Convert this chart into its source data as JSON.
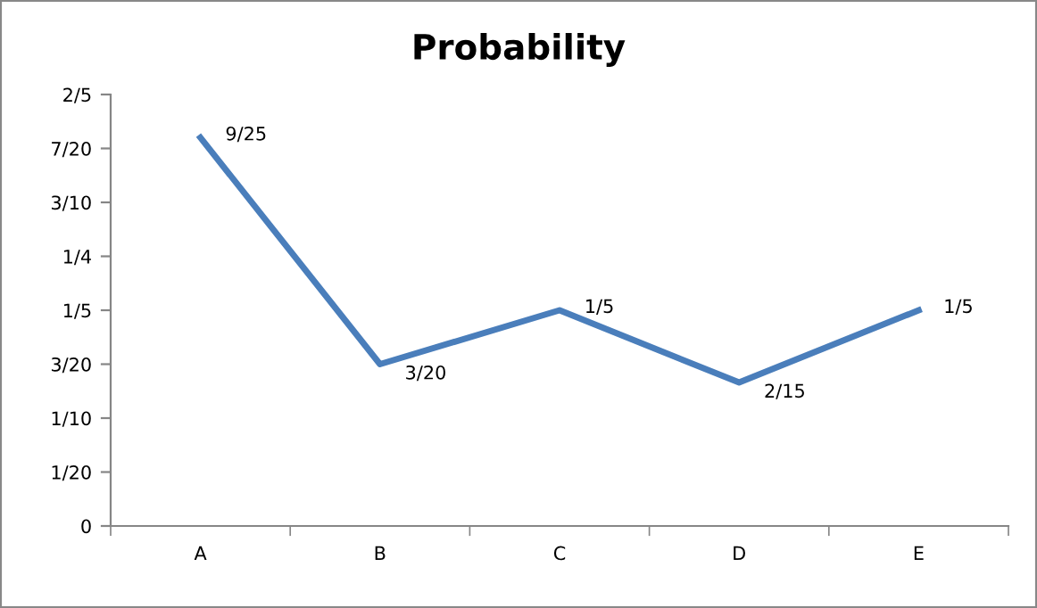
{
  "chart_data": {
    "type": "line",
    "title": "Probability",
    "categories": [
      "A",
      "B",
      "C",
      "D",
      "E"
    ],
    "series": [
      {
        "color": "#4a7ebb",
        "values": [
          0.36,
          0.15,
          0.2,
          0.133,
          0.2
        ],
        "value_labels": [
          "9/25",
          "3/20",
          "1/5",
          "2/15",
          "1/5"
        ]
      }
    ],
    "ylim": [
      0,
      0.4
    ],
    "yticks": [
      0,
      {
        "value": 0.05,
        "label": "1/20"
      },
      {
        "value": 0.1,
        "label": "1/10"
      },
      {
        "value": 0.15,
        "label": "3/20"
      },
      {
        "value": 0.2,
        "label": "1/5"
      },
      {
        "value": 0.25,
        "label": "1/4"
      },
      {
        "value": 0.3,
        "label": "3/10"
      },
      {
        "value": 0.35,
        "label": "7/20"
      },
      {
        "value": 0.4,
        "label": "2/5"
      }
    ],
    "grid": false,
    "marker": "none",
    "line_style": "solid"
  }
}
